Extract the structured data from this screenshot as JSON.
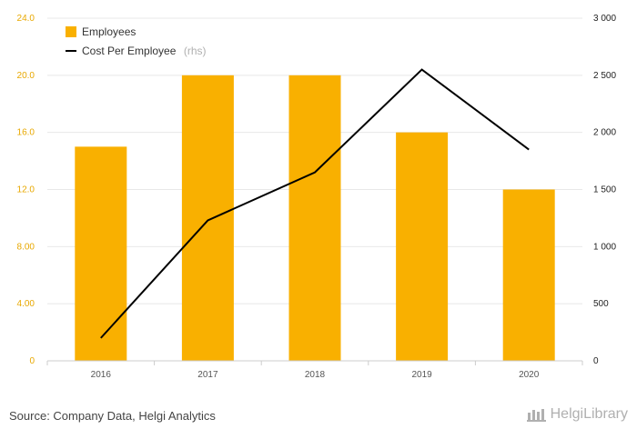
{
  "chart_data": {
    "type": "bar",
    "categories": [
      "2016",
      "2017",
      "2018",
      "2019",
      "2020"
    ],
    "series": [
      {
        "name": "Employees",
        "type": "bar",
        "axis": "left",
        "color": "#f9b000",
        "values": [
          15,
          20,
          20,
          16,
          12
        ]
      },
      {
        "name": "Cost Per Employee",
        "type": "line",
        "axis": "right",
        "color": "#000000",
        "values": [
          200,
          1230,
          1650,
          2550,
          1850
        ]
      }
    ],
    "left_axis": {
      "range": [
        0,
        24
      ],
      "ticks": [
        0,
        4,
        8,
        12,
        16,
        20,
        24
      ],
      "tick_labels": [
        "0",
        "4.00",
        "8.00",
        "12.0",
        "16.0",
        "20.0",
        "24.0"
      ]
    },
    "right_axis": {
      "range": [
        0,
        3000
      ],
      "ticks": [
        0,
        500,
        1000,
        1500,
        2000,
        2500,
        3000
      ],
      "tick_labels": [
        "0",
        "500",
        "1 000",
        "1 500",
        "2 000",
        "2 500",
        "3 000"
      ]
    },
    "legend": {
      "position": "top-left",
      "items": [
        {
          "label": "Employees",
          "suffix": ""
        },
        {
          "label": "Cost Per Employee",
          "suffix": "(rhs)"
        }
      ]
    },
    "grid": true
  },
  "footer": {
    "source": "Source: Company Data, Helgi Analytics",
    "brand": "HelgiLibrary"
  }
}
